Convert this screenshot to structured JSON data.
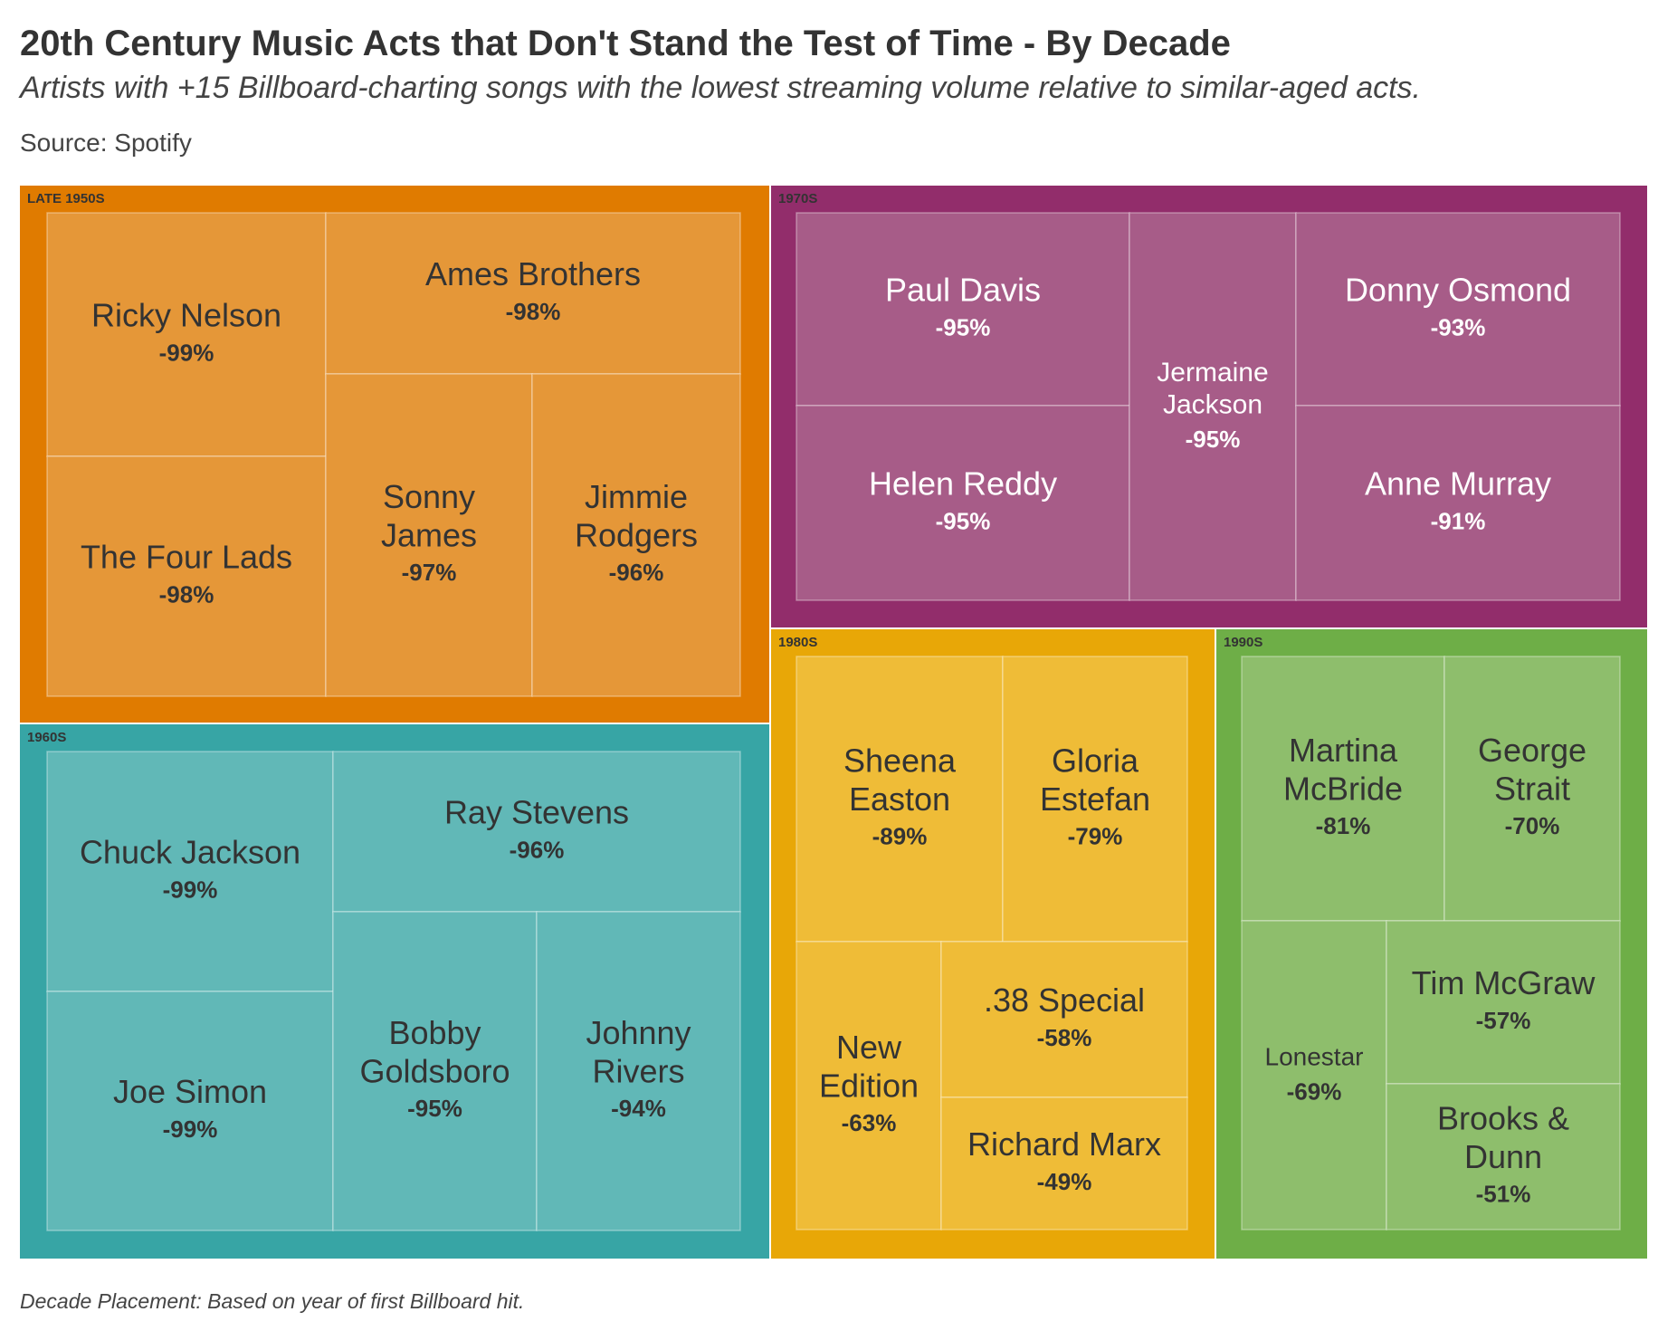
{
  "title": "20th Century Music Acts that Don't Stand the Test of Time - By Decade",
  "subtitle": "Artists with +15 Billboard-charting songs with the lowest streaming volume relative to similar-aged acts.",
  "source": "Source: Spotify",
  "footnote": "Decade Placement: Based on year of first Billboard hit.",
  "chart_data": {
    "type": "treemap",
    "title": "20th Century Music Acts that Don't Stand the Test of Time - By Decade",
    "groups": [
      {
        "name": "LATE 1950S",
        "color": "#E07B00",
        "tile_color": "#E59738",
        "text_color": "#333333",
        "items": [
          {
            "name": "Ricky Nelson",
            "value": "-99%"
          },
          {
            "name": "The Four Lads",
            "value": "-98%"
          },
          {
            "name": "Ames Brothers",
            "value": "-98%"
          },
          {
            "name": "Sonny James",
            "value": "-97%"
          },
          {
            "name": "Jimmie Rodgers",
            "value": "-96%"
          }
        ]
      },
      {
        "name": "1970S",
        "color": "#922D6B",
        "tile_color": "#A75C88",
        "text_color": "#ffffff",
        "items": [
          {
            "name": "Paul Davis",
            "value": "-95%"
          },
          {
            "name": "Helen Reddy",
            "value": "-95%"
          },
          {
            "name": "Jermaine Jackson",
            "value": "-95%"
          },
          {
            "name": "Donny Osmond",
            "value": "-93%"
          },
          {
            "name": "Anne Murray",
            "value": "-91%"
          }
        ]
      },
      {
        "name": "1960S",
        "color": "#37A5A5",
        "tile_color": "#61B8B7",
        "text_color": "#333333",
        "items": [
          {
            "name": "Chuck Jackson",
            "value": "-99%"
          },
          {
            "name": "Joe Simon",
            "value": "-99%"
          },
          {
            "name": "Ray Stevens",
            "value": "-96%"
          },
          {
            "name": "Bobby Goldsboro",
            "value": "-95%"
          },
          {
            "name": "Johnny Rivers",
            "value": "-94%"
          }
        ]
      },
      {
        "name": "1980S",
        "color": "#E8A707",
        "tile_color": "#EFBC37",
        "text_color": "#333333",
        "items": [
          {
            "name": "Sheena Easton",
            "value": "-89%"
          },
          {
            "name": "Gloria Estefan",
            "value": "-79%"
          },
          {
            "name": "New Edition",
            "value": "-63%"
          },
          {
            "name": ".38 Special",
            "value": "-58%"
          },
          {
            "name": "Richard Marx",
            "value": "-49%"
          }
        ]
      },
      {
        "name": "1990S",
        "color": "#6EAE47",
        "tile_color": "#8EBE6C",
        "text_color": "#333333",
        "items": [
          {
            "name": "Martina McBride",
            "value": "-81%"
          },
          {
            "name": "George Strait",
            "value": "-70%"
          },
          {
            "name": "Lonestar",
            "value": "-69%"
          },
          {
            "name": "Tim McGraw",
            "value": "-57%"
          },
          {
            "name": "Brooks & Dunn",
            "value": "-51%"
          }
        ]
      }
    ]
  }
}
